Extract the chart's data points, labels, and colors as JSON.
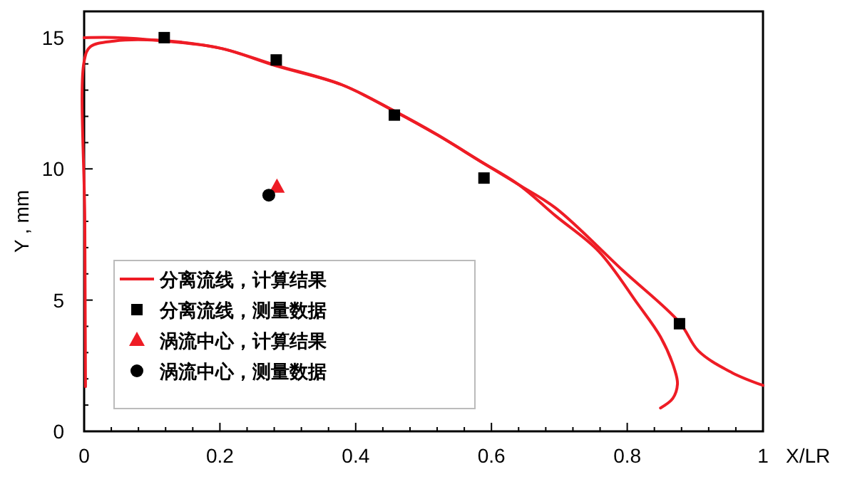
{
  "chart_data": {
    "type": "line",
    "xlabel": "X/LR",
    "ylabel": "Y , mm",
    "xlim": [
      0,
      1
    ],
    "ylim": [
      0,
      16
    ],
    "xticks": [
      0,
      {
        "value": 0.04,
        "label": null
      },
      {
        "value": 0.08,
        "label": null
      },
      {
        "value": 0.12,
        "label": null
      },
      {
        "value": 0.16,
        "label": null
      },
      0.2,
      {
        "value": 0.24,
        "label": null
      },
      {
        "value": 0.28,
        "label": null
      },
      {
        "value": 0.32,
        "label": null
      },
      {
        "value": 0.36,
        "label": null
      },
      0.4,
      {
        "value": 0.44,
        "label": null
      },
      {
        "value": 0.48,
        "label": null
      },
      {
        "value": 0.52,
        "label": null
      },
      {
        "value": 0.56,
        "label": null
      },
      0.6,
      {
        "value": 0.64,
        "label": null
      },
      {
        "value": 0.68,
        "label": null
      },
      {
        "value": 0.72,
        "label": null
      },
      {
        "value": 0.76,
        "label": null
      },
      0.8,
      {
        "value": 0.84,
        "label": null
      },
      {
        "value": 0.88,
        "label": null
      },
      {
        "value": 0.92,
        "label": null
      },
      {
        "value": 0.96,
        "label": null
      },
      1
    ],
    "yticks": [
      0,
      {
        "value": 1,
        "label": null
      },
      {
        "value": 2,
        "label": null
      },
      {
        "value": 3,
        "label": null
      },
      {
        "value": 4,
        "label": null
      },
      5,
      {
        "value": 6,
        "label": null
      },
      {
        "value": 7,
        "label": null
      },
      {
        "value": 8,
        "label": null
      },
      {
        "value": 9,
        "label": null
      },
      10,
      {
        "value": 11,
        "label": null
      },
      {
        "value": 12,
        "label": null
      },
      {
        "value": 13,
        "label": null
      },
      {
        "value": 14,
        "label": null
      },
      15
    ],
    "grid": false,
    "legend": "bottom left",
    "series": [
      {
        "name": "分离流线，计算结果",
        "color": "#ee1c25",
        "x": [
          0,
          0.05,
          0.107,
          0.2,
          0.282,
          0.38,
          0.457,
          0.52,
          0.583,
          0.64,
          0.695,
          0.793,
          0.877,
          0.905,
          0.954,
          1.0
        ],
        "values": [
          15.0,
          15.0,
          14.9,
          14.6,
          13.95,
          13.2,
          12.2,
          11.3,
          10.3,
          9.4,
          8.5,
          6.14,
          4.15,
          3.06,
          2.24,
          1.75
        ]
      },
      {
        "color": "#ee1c25",
        "x": [
          0.002,
          0.001,
          0,
          0.009,
          0.044,
          0.107,
          0.2,
          0.282,
          0.38,
          0.457,
          0.52,
          0.583,
          0.64,
          0.695,
          0.758,
          0.815,
          0.849,
          0.87,
          0.874,
          0.867,
          0.849
        ],
        "values": [
          1.7,
          8,
          14.1,
          14.65,
          14.87,
          14.9,
          14.6,
          13.93,
          13.2,
          12.2,
          11.3,
          10.3,
          9.4,
          8.2,
          6.86,
          4.87,
          3.6,
          2.34,
          1.8,
          1.25,
          0.89
        ]
      },
      {
        "type": "scatter",
        "name": "分离流线，测量数据",
        "color": "#000000",
        "marker": "square",
        "x": [
          0.118,
          0.283,
          0.457,
          0.589,
          0.877
        ],
        "values": [
          15.0,
          14.15,
          12.05,
          9.65,
          4.1
        ]
      },
      {
        "type": "scatter",
        "name": "涡流中心，计算结果",
        "color": "#ee1c25",
        "marker": "triangle",
        "x": [
          0.284
        ],
        "values": [
          9.31
        ]
      },
      {
        "type": "scatter",
        "name": "涡流中心，测量数据",
        "color": "#000000",
        "marker": "circle",
        "x": [
          0.272
        ],
        "values": [
          9.0
        ]
      }
    ]
  }
}
